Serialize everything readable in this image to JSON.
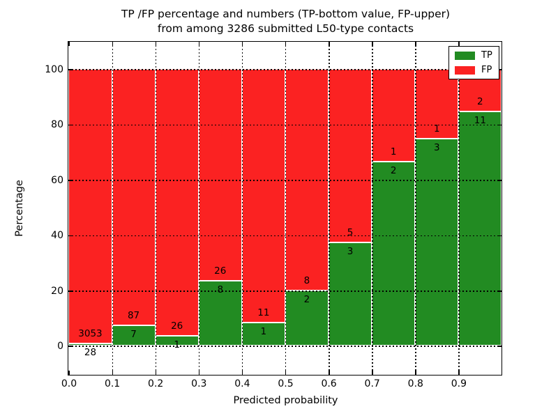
{
  "title": {
    "line1": "TP /FP percentage and numbers (TP-bottom value, FP-upper)",
    "line2": "from among 3286 submitted L50-type contacts"
  },
  "axes": {
    "xlabel": "Predicted probability",
    "ylabel": "Percentage",
    "x_tick_labels": [
      "0.0",
      "0.1",
      "0.2",
      "0.3",
      "0.4",
      "0.5",
      "0.6",
      "0.7",
      "0.8",
      "0.9"
    ],
    "y_tick_labels": [
      "0",
      "20",
      "40",
      "60",
      "80",
      "100"
    ],
    "y_tick_values": [
      0,
      20,
      40,
      60,
      80,
      100
    ],
    "xlim": [
      0.0,
      1.0
    ],
    "ylim": [
      -10.6,
      109.6
    ],
    "grid": "dotted black, x at every 0.1, y at every 20"
  },
  "legend": {
    "items": [
      {
        "label": "TP",
        "color": "#228b22"
      },
      {
        "label": "FP",
        "color": "#fb2222"
      }
    ]
  },
  "chart_data": {
    "type": "bar",
    "stacked": true,
    "normalized_to": 100,
    "title": "TP /FP percentage and numbers (TP-bottom value, FP-upper) from among 3286 submitted L50-type contacts",
    "xlabel": "Predicted probability",
    "ylabel": "Percentage",
    "total_contacts": 3286,
    "bin_edges": [
      0.0,
      0.1,
      0.2,
      0.3,
      0.4,
      0.5,
      0.6,
      0.7,
      0.8,
      0.9,
      1.0
    ],
    "series": [
      {
        "name": "TP",
        "color": "#228b22",
        "position": "bottom",
        "counts": [
          28,
          7,
          1,
          8,
          1,
          2,
          3,
          2,
          3,
          11
        ],
        "percent": [
          0.91,
          7.45,
          3.7,
          23.53,
          8.33,
          20.0,
          37.5,
          66.67,
          75.0,
          84.62
        ]
      },
      {
        "name": "FP",
        "color": "#fb2222",
        "position": "top",
        "counts": [
          3053,
          87,
          26,
          26,
          11,
          8,
          5,
          1,
          1,
          2
        ],
        "percent": [
          99.09,
          92.55,
          96.3,
          76.47,
          91.67,
          80.0,
          62.5,
          33.33,
          25.0,
          15.38
        ]
      }
    ],
    "bar_edge_color": "#ffffff",
    "ylim": [
      -10.6,
      109.6
    ],
    "xlim": [
      0.0,
      1.0
    ],
    "legend_position": "upper right"
  }
}
